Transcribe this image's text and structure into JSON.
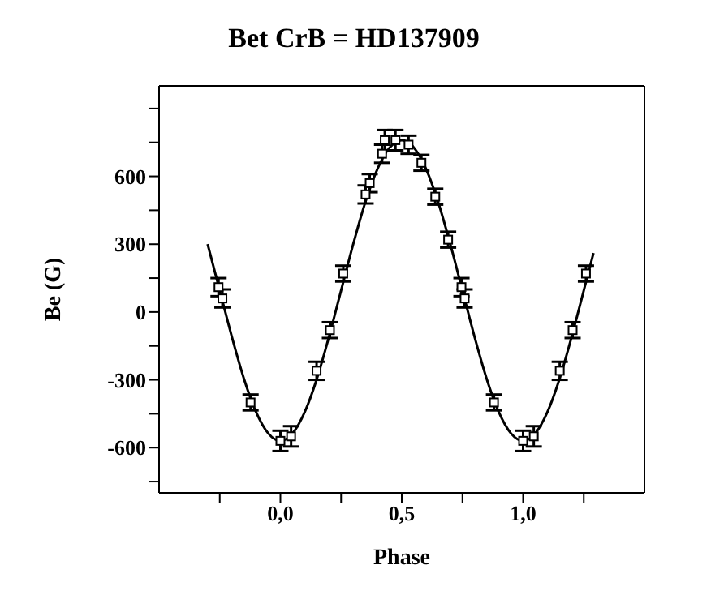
{
  "chart_data": {
    "type": "scatter",
    "title": "Bet CrB = HD137909",
    "xlabel": "Phase",
    "ylabel": "Be (G)",
    "xlim": [
      -0.5,
      1.5
    ],
    "xticks": [
      {
        "value": -0.25,
        "label": null
      },
      {
        "value": 0,
        "label": "0,0"
      },
      {
        "value": 0.25,
        "label": null
      },
      {
        "value": 0.5,
        "label": "0,5"
      },
      {
        "value": 0.75,
        "label": null
      },
      {
        "value": 1,
        "label": "1,0"
      },
      {
        "value": 1.25,
        "label": null
      }
    ],
    "ylim": [
      -800,
      1000
    ],
    "yticks": [
      {
        "value": -750,
        "label": null
      },
      -600,
      {
        "value": -450,
        "label": null
      },
      -300,
      {
        "value": -150,
        "label": null
      },
      0,
      {
        "value": 150,
        "label": null
      },
      300,
      {
        "value": 450,
        "label": null
      },
      600,
      {
        "value": 750,
        "label": null
      },
      {
        "value": 900,
        "label": null
      }
    ],
    "grid": false,
    "legend": false,
    "series": [
      {
        "color": "#000000",
        "marker": "square",
        "x": [
          -0.255,
          -0.239,
          -0.123,
          0.0,
          0.044,
          0.149,
          0.204,
          0.259,
          0.351,
          0.368,
          0.419,
          0.43,
          0.474,
          0.528,
          0.581,
          0.638,
          0.691,
          0.746,
          0.759,
          0.88,
          1.0,
          1.044,
          1.151,
          1.204,
          1.259
        ],
        "values": [
          110,
          60,
          -400,
          -570,
          -550,
          -260,
          -80,
          170,
          520,
          570,
          700,
          760,
          760,
          740,
          660,
          510,
          320,
          110,
          60,
          -400,
          -570,
          -550,
          -260,
          -80,
          170
        ],
        "errors": [
          40,
          40,
          35,
          45,
          45,
          40,
          35,
          35,
          40,
          40,
          40,
          45,
          45,
          40,
          35,
          35,
          35,
          40,
          40,
          35,
          45,
          45,
          40,
          35,
          35
        ]
      },
      {
        "type": "line",
        "color": "#000000",
        "marker": "none",
        "x": [
          -0.3,
          -0.25,
          -0.2,
          -0.15,
          -0.1,
          -0.05,
          0,
          0.05,
          0.1,
          0.15,
          0.2,
          0.25,
          0.3,
          0.35,
          0.4,
          0.45,
          0.5,
          0.55,
          0.6,
          0.65,
          0.7,
          0.75,
          0.8,
          0.85,
          0.9,
          0.95,
          1.0,
          1.05,
          1.1,
          1.15,
          1.2,
          1.25,
          1.29
        ],
        "values": [
          300,
          95,
          -110,
          -296,
          -443,
          -537,
          -570,
          -537,
          -443,
          -296,
          -110,
          95,
          300,
          486,
          633,
          727,
          760,
          727,
          633,
          486,
          300,
          95,
          -110,
          -296,
          -443,
          -537,
          -570,
          -537,
          -443,
          -296,
          -110,
          95,
          261
        ]
      }
    ]
  }
}
